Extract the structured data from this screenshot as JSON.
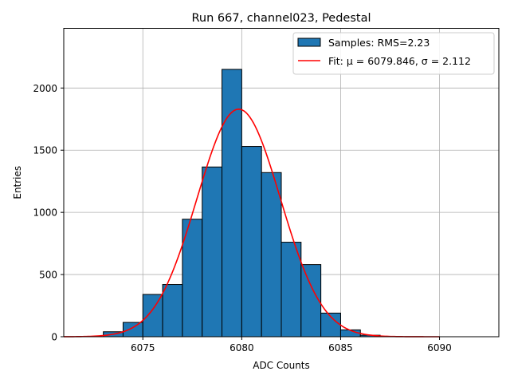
{
  "chart_data": {
    "type": "bar",
    "title": "Run 667, channel023, Pedestal",
    "xlabel": "ADC Counts",
    "ylabel": "Entries",
    "xlim": [
      6071,
      6093
    ],
    "ylim": [
      0,
      2480
    ],
    "x_ticks": [
      6075,
      6080,
      6085,
      6090
    ],
    "y_ticks": [
      0,
      500,
      1000,
      1500,
      2000
    ],
    "grid": true,
    "legend_position": "top-right",
    "bin_width": 1,
    "bins": [
      {
        "start": 6073,
        "count": 40
      },
      {
        "start": 6074,
        "count": 115
      },
      {
        "start": 6075,
        "count": 340
      },
      {
        "start": 6076,
        "count": 420
      },
      {
        "start": 6077,
        "count": 945
      },
      {
        "start": 6078,
        "count": 1365
      },
      {
        "start": 6079,
        "count": 2150
      },
      {
        "start": 6080,
        "count": 1530
      },
      {
        "start": 6081,
        "count": 1320
      },
      {
        "start": 6082,
        "count": 760
      },
      {
        "start": 6083,
        "count": 580
      },
      {
        "start": 6084,
        "count": 190
      },
      {
        "start": 6085,
        "count": 55
      },
      {
        "start": 6086,
        "count": 12
      },
      {
        "start": 6087,
        "count": 2
      }
    ],
    "fit": {
      "mu": 6079.846,
      "sigma": 2.112,
      "amplitude": 1830,
      "x_range": [
        6071,
        6090
      ]
    },
    "series": [
      {
        "name": "Samples: RMS=2.23",
        "type": "histogram",
        "color": "#1f77b4",
        "edgecolor": "#000000"
      },
      {
        "name": "Fit: μ = 6079.846, σ = 2.112",
        "type": "line",
        "color": "#ff0000"
      }
    ]
  }
}
